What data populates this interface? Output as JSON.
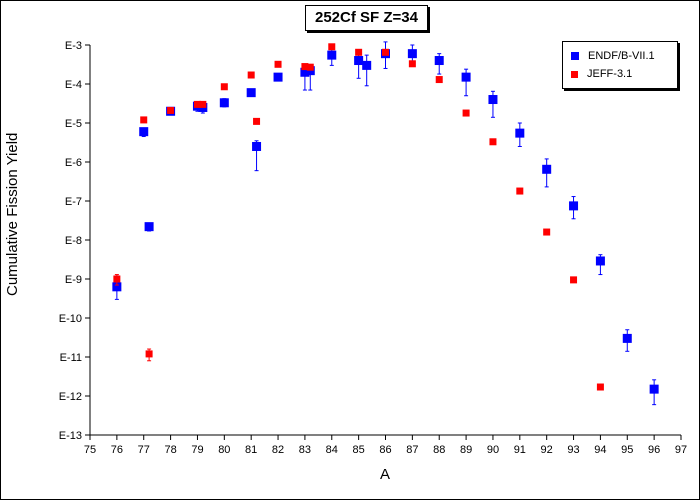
{
  "chart_data": {
    "type": "scatter",
    "title": "252Cf SF Z=34",
    "xlabel": "A",
    "ylabel": "Cumulative Fission Yield",
    "xlim": [
      75,
      97
    ],
    "ylim_exponent": [
      -13,
      -3
    ],
    "y_scale": "log",
    "x_ticks": [
      "75",
      "76",
      "77",
      "78",
      "79",
      "80",
      "81",
      "82",
      "83",
      "84",
      "85",
      "86",
      "87",
      "88",
      "89",
      "90",
      "91",
      "92",
      "93",
      "94",
      "95",
      "96",
      "97"
    ],
    "y_ticks": [
      "E-3",
      "E-4",
      "E-5",
      "E-6",
      "E-7",
      "E-8",
      "E-9",
      "E-10",
      "E-11",
      "E-12",
      "E-13"
    ],
    "grid": false,
    "legend_position": "top-right",
    "series": [
      {
        "name": "ENDF/B-VII.1",
        "color": "#0000ff",
        "marker": "square",
        "points": [
          {
            "x": 76,
            "y": 6.3e-10,
            "y_lo": 3e-10,
            "y_hi": 1.2e-09
          },
          {
            "x": 77,
            "y": 6e-06,
            "y_lo": 4.5e-06,
            "y_hi": 7e-06
          },
          {
            "x": 77.2,
            "y": 2.2e-08,
            "y_lo": 1.7e-08,
            "y_hi": 2.7e-08
          },
          {
            "x": 78,
            "y": 2e-05
          },
          {
            "x": 79,
            "y": 2.7e-05,
            "y_lo": 2e-05,
            "y_hi": 3.5e-05
          },
          {
            "x": 79.2,
            "y": 2.5e-05,
            "y_lo": 1.8e-05,
            "y_hi": 3.2e-05
          },
          {
            "x": 80,
            "y": 3.3e-05,
            "y_lo": 2.6e-05,
            "y_hi": 4.2e-05
          },
          {
            "x": 81,
            "y": 6e-05,
            "y_lo": 4.8e-05,
            "y_hi": 7.2e-05
          },
          {
            "x": 81.2,
            "y": 2.5e-06,
            "y_lo": 6e-07,
            "y_hi": 3.5e-06
          },
          {
            "x": 82,
            "y": 0.00015
          },
          {
            "x": 83,
            "y": 0.0002,
            "y_lo": 7e-05,
            "y_hi": 0.0003
          },
          {
            "x": 83.2,
            "y": 0.00022,
            "y_lo": 7e-05,
            "y_hi": 0.0003
          },
          {
            "x": 84,
            "y": 0.00055,
            "y_lo": 0.0003,
            "y_hi": 0.0009
          },
          {
            "x": 85,
            "y": 0.0004,
            "y_lo": 0.00014,
            "y_hi": 0.0007
          },
          {
            "x": 85.3,
            "y": 0.0003,
            "y_lo": 9e-05,
            "y_hi": 0.00055
          },
          {
            "x": 86,
            "y": 0.0006,
            "y_lo": 0.00025,
            "y_hi": 0.0012
          },
          {
            "x": 87,
            "y": 0.0006,
            "y_lo": 0.0003,
            "y_hi": 0.001
          },
          {
            "x": 88,
            "y": 0.0004,
            "y_lo": 0.00018,
            "y_hi": 0.0006
          },
          {
            "x": 89,
            "y": 0.00015,
            "y_lo": 5e-05,
            "y_hi": 0.00024
          },
          {
            "x": 90,
            "y": 4e-05,
            "y_lo": 1.4e-05,
            "y_hi": 6.5e-05
          },
          {
            "x": 91,
            "y": 5.5e-06,
            "y_lo": 2.5e-06,
            "y_hi": 1e-05
          },
          {
            "x": 92,
            "y": 6.5e-07,
            "y_lo": 2.3e-07,
            "y_hi": 1.2e-06
          },
          {
            "x": 93,
            "y": 7.5e-08,
            "y_lo": 3.5e-08,
            "y_hi": 1.3e-07
          },
          {
            "x": 94,
            "y": 2.9e-09,
            "y_lo": 1.3e-09,
            "y_hi": 4.2e-09
          },
          {
            "x": 95,
            "y": 3e-11,
            "y_lo": 1.4e-11,
            "y_hi": 5e-11
          },
          {
            "x": 96,
            "y": 1.5e-12,
            "y_lo": 6e-13,
            "y_hi": 2.6e-12
          }
        ]
      },
      {
        "name": "JEFF-3.1",
        "color": "#ff0000",
        "marker": "square",
        "points": [
          {
            "x": 76,
            "y": 1e-09,
            "y_lo": 7e-10,
            "y_hi": 1.3e-09
          },
          {
            "x": 77,
            "y": 1.2e-05
          },
          {
            "x": 77.2,
            "y": 1.2e-11,
            "y_lo": 8e-12,
            "y_hi": 1.6e-11
          },
          {
            "x": 78,
            "y": 2.1e-05
          },
          {
            "x": 79,
            "y": 3e-05
          },
          {
            "x": 79.2,
            "y": 3e-05
          },
          {
            "x": 80,
            "y": 8.5e-05
          },
          {
            "x": 81,
            "y": 0.00017
          },
          {
            "x": 81.2,
            "y": 1.1e-05
          },
          {
            "x": 82,
            "y": 0.00032
          },
          {
            "x": 83,
            "y": 0.00028
          },
          {
            "x": 83.2,
            "y": 0.00027
          },
          {
            "x": 84,
            "y": 0.0009
          },
          {
            "x": 85,
            "y": 0.00065
          },
          {
            "x": 86,
            "y": 0.00065
          },
          {
            "x": 87,
            "y": 0.00033
          },
          {
            "x": 88,
            "y": 0.00013
          },
          {
            "x": 89,
            "y": 1.8e-05
          },
          {
            "x": 90,
            "y": 3.3e-06
          },
          {
            "x": 91,
            "y": 1.8e-07
          },
          {
            "x": 92,
            "y": 1.6e-08
          },
          {
            "x": 93,
            "y": 9.5e-10
          },
          {
            "x": 94,
            "y": 1.7e-12
          }
        ]
      }
    ]
  }
}
